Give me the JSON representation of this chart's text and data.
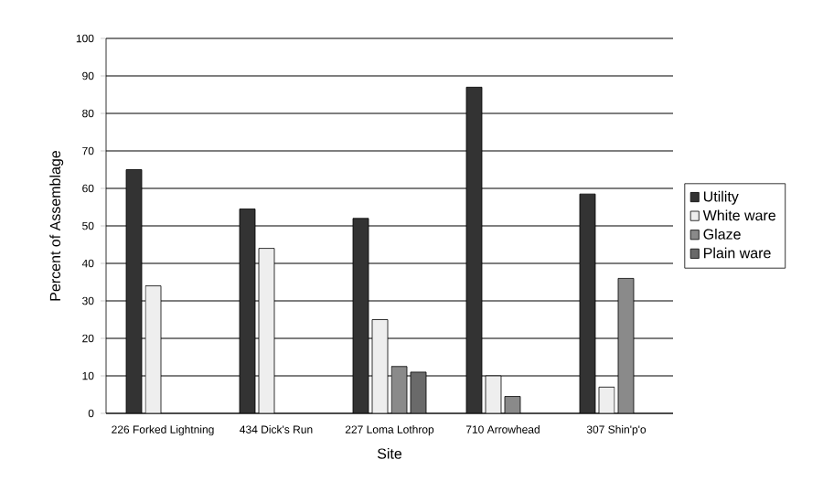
{
  "chart_data": {
    "type": "bar",
    "xlabel": "Site",
    "ylabel": "Percent of Assemblage",
    "categories": [
      "226 Forked Lightning",
      "434 Dick's Run",
      "227 Loma Lothrop",
      "710 Arrowhead",
      "307 Shin'p'o"
    ],
    "series": [
      {
        "name": "Utility",
        "color": "#333333",
        "values": [
          65,
          54.5,
          52,
          87,
          58.5
        ]
      },
      {
        "name": "White ware",
        "color": "#eeeeee",
        "values": [
          34,
          44,
          25,
          10,
          7
        ]
      },
      {
        "name": "Glaze",
        "color": "#8a8a8a",
        "values": [
          null,
          null,
          12.5,
          4.5,
          36
        ]
      },
      {
        "name": "Plain ware",
        "color": "#6a6a6a",
        "values": [
          null,
          null,
          11,
          null,
          null
        ]
      }
    ],
    "ylim": [
      0,
      100
    ],
    "yticks": [
      0,
      10,
      20,
      30,
      40,
      50,
      60,
      70,
      80,
      90,
      100
    ],
    "grid": "y",
    "legend": "right"
  }
}
